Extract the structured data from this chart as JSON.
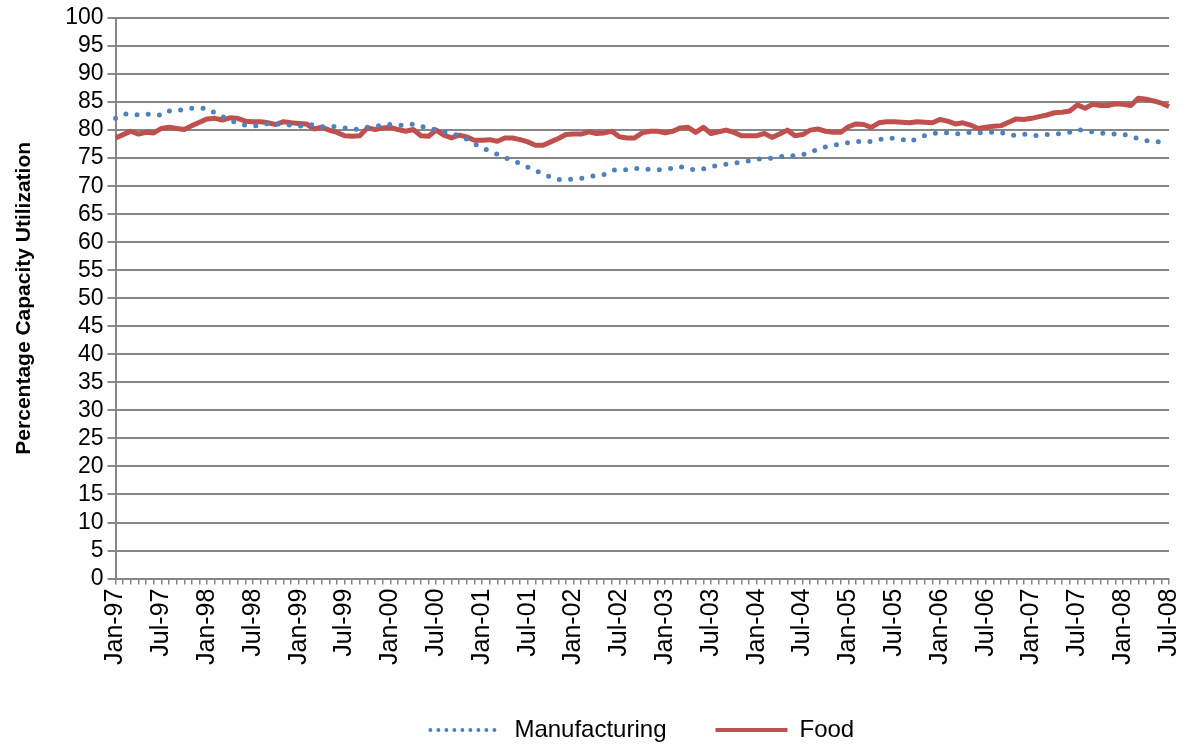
{
  "chart_data": {
    "type": "line",
    "ylabel": "Percentage Capacity Utilization",
    "categories": [
      "Jan-97",
      null,
      null,
      null,
      null,
      null,
      "Jul-97",
      null,
      null,
      null,
      null,
      null,
      "Jan-98",
      null,
      null,
      null,
      null,
      null,
      "Jul-98",
      null,
      null,
      null,
      null,
      null,
      "Jan-99",
      null,
      null,
      null,
      null,
      null,
      "Jul-99",
      null,
      null,
      null,
      null,
      null,
      "Jan-00",
      null,
      null,
      null,
      null,
      null,
      "Jul-00",
      null,
      null,
      null,
      null,
      null,
      "Jan-01",
      null,
      null,
      null,
      null,
      null,
      "Jul-01",
      null,
      null,
      null,
      null,
      null,
      "Jan-02",
      null,
      null,
      null,
      null,
      null,
      "Jul-02",
      null,
      null,
      null,
      null,
      null,
      "Jan-03",
      null,
      null,
      null,
      null,
      null,
      "Jul-03",
      null,
      null,
      null,
      null,
      null,
      "Jan-04",
      null,
      null,
      null,
      null,
      null,
      "Jul-04",
      null,
      null,
      null,
      null,
      null,
      "Jan-05",
      null,
      null,
      null,
      null,
      null,
      "Jul-05",
      null,
      null,
      null,
      null,
      null,
      "Jan-06",
      null,
      null,
      null,
      null,
      null,
      "Jul-06",
      null,
      null,
      null,
      null,
      null,
      "Jan-07",
      null,
      null,
      null,
      null,
      null,
      "Jul-07",
      null,
      null,
      null,
      null,
      null,
      "Jan-08",
      null,
      null,
      null,
      null,
      null,
      "Jul-08"
    ],
    "series": [
      {
        "name": "Manufacturing",
        "color": "#4f81bd",
        "line_style": "dotted",
        "values": [
          82.1,
          82.8,
          83.0,
          82.7,
          82.8,
          82.9,
          82.6,
          83.4,
          83.6,
          83.6,
          83.9,
          83.9,
          83.9,
          83.1,
          82.4,
          81.8,
          81.2,
          80.9,
          80.8,
          80.8,
          81.2,
          81.1,
          81.0,
          80.9,
          80.7,
          80.8,
          81.0,
          80.6,
          80.7,
          80.6,
          80.4,
          80.1,
          80.2,
          80.5,
          80.7,
          80.9,
          81.0,
          80.9,
          80.8,
          81.1,
          80.7,
          80.3,
          80.1,
          79.7,
          79.4,
          79.0,
          78.4,
          77.6,
          76.8,
          76.3,
          75.7,
          75.1,
          74.6,
          74.0,
          73.4,
          72.8,
          72.2,
          71.6,
          71.2,
          71.1,
          71.3,
          71.4,
          71.7,
          71.9,
          72.1,
          72.8,
          73.0,
          72.9,
          73.2,
          73.1,
          73.0,
          72.9,
          73.0,
          73.2,
          73.5,
          73.1,
          72.9,
          73.1,
          73.5,
          73.7,
          73.9,
          74.1,
          74.3,
          74.5,
          74.8,
          74.9,
          75.0,
          75.2,
          75.5,
          75.4,
          75.6,
          76.2,
          76.5,
          77.0,
          77.3,
          77.5,
          77.8,
          78.0,
          77.9,
          78.0,
          78.3,
          78.6,
          78.5,
          78.4,
          77.9,
          78.5,
          79.0,
          79.3,
          79.6,
          79.5,
          79.3,
          79.5,
          79.6,
          79.5,
          79.6,
          79.6,
          79.6,
          79.1,
          79.1,
          79.3,
          79.0,
          79.1,
          79.2,
          79.3,
          79.4,
          79.6,
          80.1,
          79.9,
          79.7,
          79.5,
          79.3,
          79.3,
          79.3,
          78.8,
          78.5,
          78.1,
          78.0,
          77.9,
          77.8
        ]
      },
      {
        "name": "Food",
        "color": "#c0504d",
        "line_style": "solid",
        "values": [
          78.6,
          79.2,
          79.8,
          79.3,
          79.6,
          79.5,
          80.3,
          80.5,
          80.3,
          80.1,
          80.8,
          81.4,
          82.0,
          82.1,
          81.8,
          82.2,
          82.1,
          81.6,
          81.5,
          81.5,
          81.3,
          81.0,
          81.5,
          81.3,
          81.2,
          81.1,
          80.2,
          80.5,
          80.0,
          79.6,
          79.0,
          78.9,
          79.0,
          80.4,
          80.1,
          80.4,
          80.5,
          80.1,
          79.8,
          80.1,
          79.0,
          78.9,
          80.0,
          79.1,
          78.6,
          79.1,
          78.8,
          78.2,
          78.2,
          78.3,
          78.0,
          78.6,
          78.6,
          78.3,
          77.9,
          77.3,
          77.3,
          77.9,
          78.5,
          79.2,
          79.3,
          79.3,
          79.7,
          79.4,
          79.5,
          79.8,
          78.8,
          78.6,
          78.6,
          79.5,
          79.8,
          79.8,
          79.5,
          79.8,
          80.4,
          80.5,
          79.6,
          80.5,
          79.4,
          79.7,
          80.0,
          79.6,
          79.0,
          79.0,
          79.0,
          79.4,
          78.7,
          79.3,
          80.0,
          79.0,
          79.2,
          80.0,
          80.2,
          79.8,
          79.6,
          79.6,
          80.6,
          81.1,
          81.0,
          80.5,
          81.3,
          81.5,
          81.5,
          81.4,
          81.3,
          81.5,
          81.4,
          81.3,
          81.9,
          81.6,
          81.1,
          81.3,
          80.9,
          80.3,
          80.5,
          80.7,
          80.8,
          81.4,
          82.0,
          81.9,
          82.1,
          82.4,
          82.7,
          83.1,
          83.2,
          83.4,
          84.5,
          83.9,
          84.6,
          84.4,
          84.4,
          84.7,
          84.6,
          84.4,
          85.7,
          85.5,
          85.2,
          84.8,
          84.2
        ]
      }
    ],
    "ylim": [
      0,
      100
    ],
    "yticks": [
      0,
      5,
      10,
      15,
      20,
      25,
      30,
      35,
      40,
      45,
      50,
      55,
      60,
      65,
      70,
      75,
      80,
      85,
      90,
      95,
      100
    ],
    "grid": "y",
    "legend": "bottom"
  }
}
